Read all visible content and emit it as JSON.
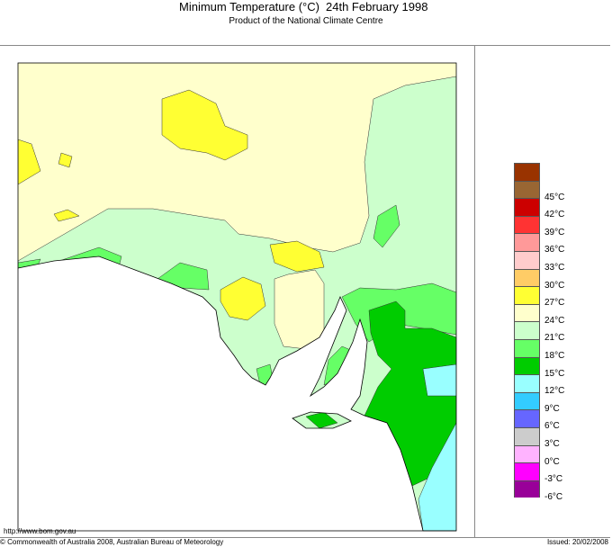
{
  "header": {
    "title": "Minimum Temperature (°C)",
    "date": "24th February 1998",
    "subtitle": "Product of the National Climate Centre"
  },
  "legend": {
    "colors": [
      "#993300",
      "#996633",
      "#cc0000",
      "#ff3333",
      "#ff9999",
      "#ffcccc",
      "#ffcc66",
      "#ffff33",
      "#ffffcc",
      "#ccffcc",
      "#66ff66",
      "#00cc00",
      "#99ffff",
      "#33ccff",
      "#6666ff",
      "#cccccc",
      "#ffb3ff",
      "#ff00ff",
      "#990099"
    ],
    "labels": [
      "45°C",
      "42°C",
      "39°C",
      "36°C",
      "33°C",
      "30°C",
      "27°C",
      "24°C",
      "21°C",
      "18°C",
      "15°C",
      "12°C",
      "9°C",
      "6°C",
      "3°C",
      "0°C",
      "-3°C",
      "-6°C"
    ]
  },
  "map": {
    "region": "South Australia",
    "band_colors": {
      "21-24": "#ffffcc",
      "18-21": "#ccffcc",
      "15-18": "#66ff66",
      "12-15": "#00cc00",
      "9-12": "#99ffff",
      "24-27": "#ffff33"
    }
  },
  "footer": {
    "url": "http://www.bom.gov.au",
    "copyright": "© Commonwealth of Australia 2008, Australian Bureau of Meteorology",
    "issued": "Issued: 20/02/2008"
  }
}
